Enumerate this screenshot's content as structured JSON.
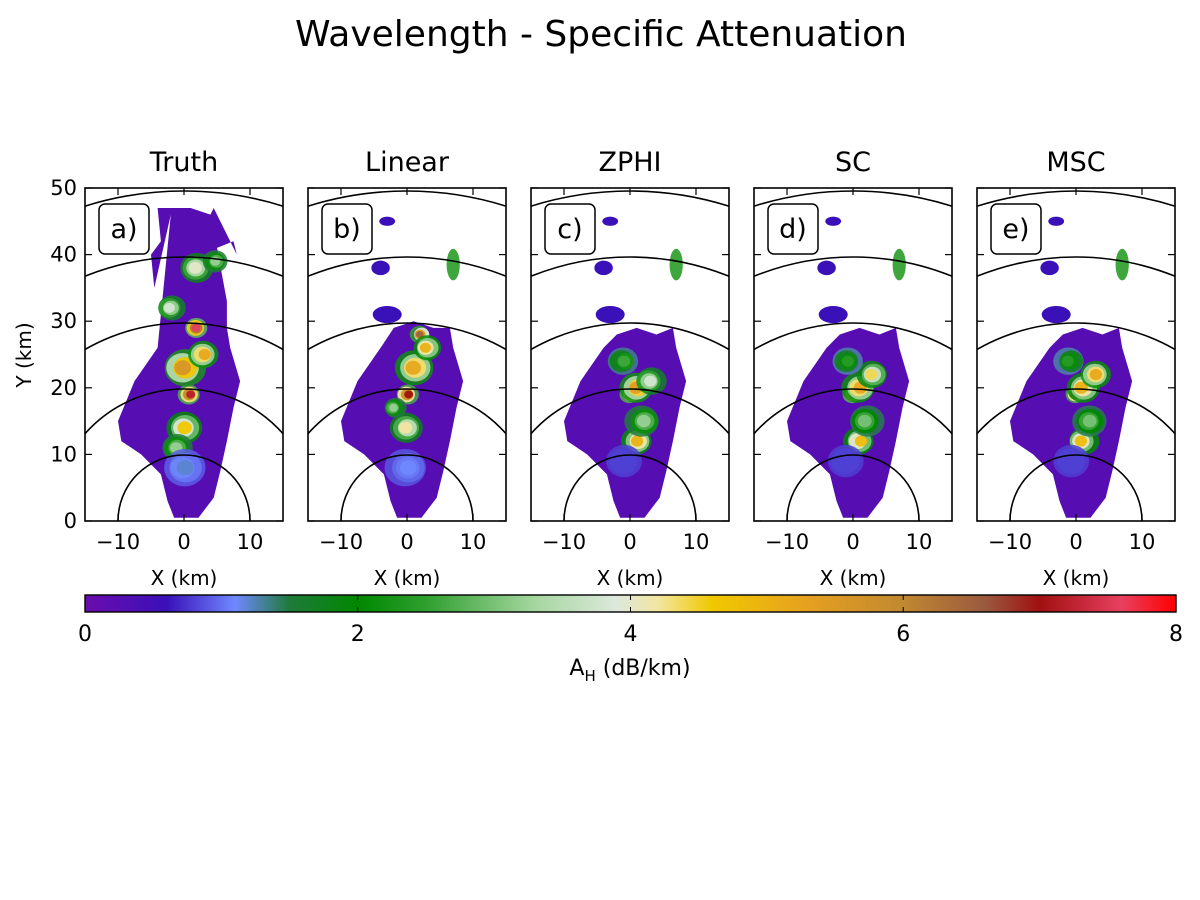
{
  "chart_data": {
    "type": "heatmap",
    "title": "Wavelength - Specific Attenuation",
    "xlabel": "X (km)",
    "ylabel": "Y (km)",
    "xlim": [
      -15,
      15
    ],
    "ylim": [
      0,
      50
    ],
    "x_ticks": [
      "−10",
      "0",
      "10"
    ],
    "x_tick_values": [
      -10,
      0,
      10
    ],
    "y_ticks": [
      "0",
      "10",
      "20",
      "30",
      "40",
      "50"
    ],
    "y_tick_values": [
      0,
      10,
      20,
      30,
      40,
      50
    ],
    "range_rings_km": [
      10,
      20,
      30,
      40,
      50
    ],
    "grid": false,
    "panels": [
      {
        "id": "a",
        "tag": "a)",
        "title": "Truth"
      },
      {
        "id": "b",
        "tag": "b)",
        "title": "Linear"
      },
      {
        "id": "c",
        "tag": "c)",
        "title": "ZPHI"
      },
      {
        "id": "d",
        "tag": "d)",
        "title": "SC"
      },
      {
        "id": "e",
        "tag": "e)",
        "title": "MSC"
      }
    ],
    "colorbar": {
      "label_main": "A",
      "label_sub": "H",
      "label_rest": " (dB/km)",
      "range": [
        0,
        8
      ],
      "ticks": [
        "0",
        "2",
        "4",
        "6",
        "8"
      ],
      "tick_values": [
        0,
        2,
        4,
        6,
        8
      ],
      "colors": [
        {
          "v": 0.0,
          "c": "#6a0dad"
        },
        {
          "v": 0.6,
          "c": "#3a10b8"
        },
        {
          "v": 1.1,
          "c": "#6f88ff"
        },
        {
          "v": 1.5,
          "c": "#1f7a3a"
        },
        {
          "v": 2.0,
          "c": "#008800"
        },
        {
          "v": 2.5,
          "c": "#2f9f2f"
        },
        {
          "v": 3.3,
          "c": "#a6d6a0"
        },
        {
          "v": 3.9,
          "c": "#dde8dc"
        },
        {
          "v": 4.2,
          "c": "#f2e6a0"
        },
        {
          "v": 4.6,
          "c": "#f0c800"
        },
        {
          "v": 5.3,
          "c": "#e6a020"
        },
        {
          "v": 6.0,
          "c": "#c08830"
        },
        {
          "v": 6.6,
          "c": "#9a5a40"
        },
        {
          "v": 7.0,
          "c": "#a01010"
        },
        {
          "v": 7.6,
          "c": "#e84060"
        },
        {
          "v": 8.0,
          "c": "#ff0000"
        }
      ]
    }
  }
}
